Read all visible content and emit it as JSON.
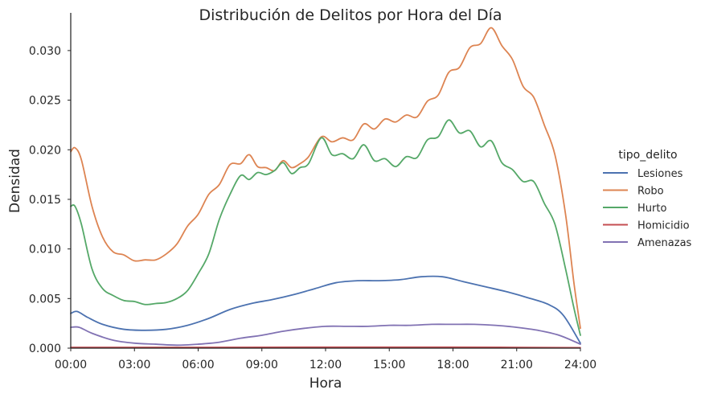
{
  "chart_data": {
    "type": "line",
    "title": "Distribución de Delitos por Hora del Día",
    "xlabel": "Hora",
    "ylabel": "Densidad",
    "xlim": [
      0,
      24
    ],
    "ylim": [
      0,
      0.0338
    ],
    "grid": false,
    "legend_title": "tipo_delito",
    "legend_placement": "right",
    "x_ticks": [
      {
        "value": 0,
        "label": "00:00"
      },
      {
        "value": 3,
        "label": "03:00"
      },
      {
        "value": 6,
        "label": "06:00"
      },
      {
        "value": 9,
        "label": "09:00"
      },
      {
        "value": 12,
        "label": "12:00"
      },
      {
        "value": 15,
        "label": "15:00"
      },
      {
        "value": 18,
        "label": "18:00"
      },
      {
        "value": 21,
        "label": "21:00"
      },
      {
        "value": 24,
        "label": "24:00"
      }
    ],
    "y_ticks": [
      {
        "value": 0.0,
        "label": "0.000"
      },
      {
        "value": 0.005,
        "label": "0.005"
      },
      {
        "value": 0.01,
        "label": "0.010"
      },
      {
        "value": 0.015,
        "label": "0.015"
      },
      {
        "value": 0.02,
        "label": "0.020"
      },
      {
        "value": 0.025,
        "label": "0.025"
      },
      {
        "value": 0.03,
        "label": "0.030"
      }
    ],
    "series": [
      {
        "name": "Lesiones",
        "color": "#4c72b0",
        "points": [
          [
            0,
            0.0035
          ],
          [
            0.3,
            0.0037
          ],
          [
            0.8,
            0.0031
          ],
          [
            1.5,
            0.0024
          ],
          [
            2.5,
            0.0019
          ],
          [
            3.5,
            0.0018
          ],
          [
            4.5,
            0.0019
          ],
          [
            5.5,
            0.0023
          ],
          [
            6.5,
            0.003
          ],
          [
            7.5,
            0.0039
          ],
          [
            8.5,
            0.0045
          ],
          [
            9.5,
            0.0049
          ],
          [
            10.5,
            0.0054
          ],
          [
            11.5,
            0.006
          ],
          [
            12.5,
            0.0066
          ],
          [
            13.5,
            0.0068
          ],
          [
            14.5,
            0.0068
          ],
          [
            15.5,
            0.0069
          ],
          [
            16.5,
            0.0072
          ],
          [
            17.5,
            0.0072
          ],
          [
            18.5,
            0.0067
          ],
          [
            19.5,
            0.0062
          ],
          [
            20.5,
            0.0057
          ],
          [
            21.5,
            0.0051
          ],
          [
            22.5,
            0.0044
          ],
          [
            23.2,
            0.0033
          ],
          [
            24,
            0.0005
          ]
        ]
      },
      {
        "name": "Robo",
        "color": "#dd8452",
        "points": [
          [
            0,
            0.0198
          ],
          [
            0.2,
            0.0202
          ],
          [
            0.5,
            0.019
          ],
          [
            1,
            0.0143
          ],
          [
            1.5,
            0.0112
          ],
          [
            2,
            0.0097
          ],
          [
            2.5,
            0.0094
          ],
          [
            3,
            0.0088
          ],
          [
            3.5,
            0.0089
          ],
          [
            4,
            0.0089
          ],
          [
            4.5,
            0.0095
          ],
          [
            5,
            0.0105
          ],
          [
            5.5,
            0.0123
          ],
          [
            6,
            0.0135
          ],
          [
            6.5,
            0.0155
          ],
          [
            7,
            0.0165
          ],
          [
            7.5,
            0.0185
          ],
          [
            8,
            0.0186
          ],
          [
            8.4,
            0.0195
          ],
          [
            8.8,
            0.0183
          ],
          [
            9.2,
            0.0182
          ],
          [
            9.6,
            0.0179
          ],
          [
            10,
            0.0189
          ],
          [
            10.4,
            0.0182
          ],
          [
            10.8,
            0.0186
          ],
          [
            11.2,
            0.0193
          ],
          [
            11.8,
            0.0213
          ],
          [
            12.3,
            0.0208
          ],
          [
            12.8,
            0.0212
          ],
          [
            13.3,
            0.021
          ],
          [
            13.8,
            0.0226
          ],
          [
            14.3,
            0.0221
          ],
          [
            14.8,
            0.0231
          ],
          [
            15.3,
            0.0228
          ],
          [
            15.8,
            0.0235
          ],
          [
            16.3,
            0.0233
          ],
          [
            16.8,
            0.0249
          ],
          [
            17.3,
            0.0255
          ],
          [
            17.8,
            0.0278
          ],
          [
            18.3,
            0.0283
          ],
          [
            18.8,
            0.0303
          ],
          [
            19.3,
            0.0307
          ],
          [
            19.8,
            0.0323
          ],
          [
            20.3,
            0.0305
          ],
          [
            20.8,
            0.0291
          ],
          [
            21.3,
            0.0264
          ],
          [
            21.8,
            0.0253
          ],
          [
            22.3,
            0.0225
          ],
          [
            22.8,
            0.0195
          ],
          [
            23.3,
            0.0135
          ],
          [
            23.7,
            0.0065
          ],
          [
            24,
            0.002
          ]
        ]
      },
      {
        "name": "Hurto",
        "color": "#55a868",
        "points": [
          [
            0,
            0.0143
          ],
          [
            0.2,
            0.0143
          ],
          [
            0.5,
            0.0125
          ],
          [
            1,
            0.008
          ],
          [
            1.5,
            0.006
          ],
          [
            2,
            0.0053
          ],
          [
            2.5,
            0.0048
          ],
          [
            3,
            0.0047
          ],
          [
            3.5,
            0.0044
          ],
          [
            4,
            0.0045
          ],
          [
            4.5,
            0.0046
          ],
          [
            5,
            0.005
          ],
          [
            5.5,
            0.0058
          ],
          [
            6,
            0.0075
          ],
          [
            6.5,
            0.0095
          ],
          [
            7,
            0.013
          ],
          [
            7.5,
            0.0155
          ],
          [
            8,
            0.0174
          ],
          [
            8.4,
            0.017
          ],
          [
            8.8,
            0.0177
          ],
          [
            9.2,
            0.0175
          ],
          [
            9.6,
            0.0179
          ],
          [
            10,
            0.0187
          ],
          [
            10.4,
            0.0176
          ],
          [
            10.8,
            0.0182
          ],
          [
            11.2,
            0.0186
          ],
          [
            11.8,
            0.0212
          ],
          [
            12.3,
            0.0195
          ],
          [
            12.8,
            0.0196
          ],
          [
            13.3,
            0.0191
          ],
          [
            13.8,
            0.0205
          ],
          [
            14.3,
            0.0189
          ],
          [
            14.8,
            0.0191
          ],
          [
            15.3,
            0.0183
          ],
          [
            15.8,
            0.0193
          ],
          [
            16.3,
            0.0192
          ],
          [
            16.8,
            0.021
          ],
          [
            17.3,
            0.0213
          ],
          [
            17.8,
            0.023
          ],
          [
            18.3,
            0.0217
          ],
          [
            18.8,
            0.0219
          ],
          [
            19.3,
            0.0203
          ],
          [
            19.8,
            0.0209
          ],
          [
            20.3,
            0.0187
          ],
          [
            20.8,
            0.018
          ],
          [
            21.3,
            0.0168
          ],
          [
            21.8,
            0.0168
          ],
          [
            22.3,
            0.0146
          ],
          [
            22.8,
            0.0125
          ],
          [
            23.3,
            0.008
          ],
          [
            23.7,
            0.004
          ],
          [
            24,
            0.0013
          ]
        ]
      },
      {
        "name": "Homicidio",
        "color": "#c44e52",
        "points": [
          [
            0,
            8e-05
          ],
          [
            6,
            8e-05
          ],
          [
            12,
            0.0001
          ],
          [
            18,
            0.0001
          ],
          [
            24,
            5e-05
          ]
        ]
      },
      {
        "name": "Amenazas",
        "color": "#8172b3",
        "points": [
          [
            0,
            0.0021
          ],
          [
            0.4,
            0.0021
          ],
          [
            1,
            0.0015
          ],
          [
            2,
            0.0008
          ],
          [
            3,
            0.0005
          ],
          [
            4,
            0.0004
          ],
          [
            5,
            0.0003
          ],
          [
            6,
            0.0004
          ],
          [
            7,
            0.0006
          ],
          [
            8,
            0.001
          ],
          [
            9,
            0.0013
          ],
          [
            10,
            0.0017
          ],
          [
            11,
            0.002
          ],
          [
            12,
            0.0022
          ],
          [
            13,
            0.0022
          ],
          [
            14,
            0.0022
          ],
          [
            15,
            0.0023
          ],
          [
            16,
            0.0023
          ],
          [
            17,
            0.0024
          ],
          [
            18,
            0.0024
          ],
          [
            19,
            0.0024
          ],
          [
            20,
            0.0023
          ],
          [
            21,
            0.0021
          ],
          [
            22,
            0.0018
          ],
          [
            23,
            0.0013
          ],
          [
            24,
            0.0004
          ]
        ]
      }
    ]
  }
}
